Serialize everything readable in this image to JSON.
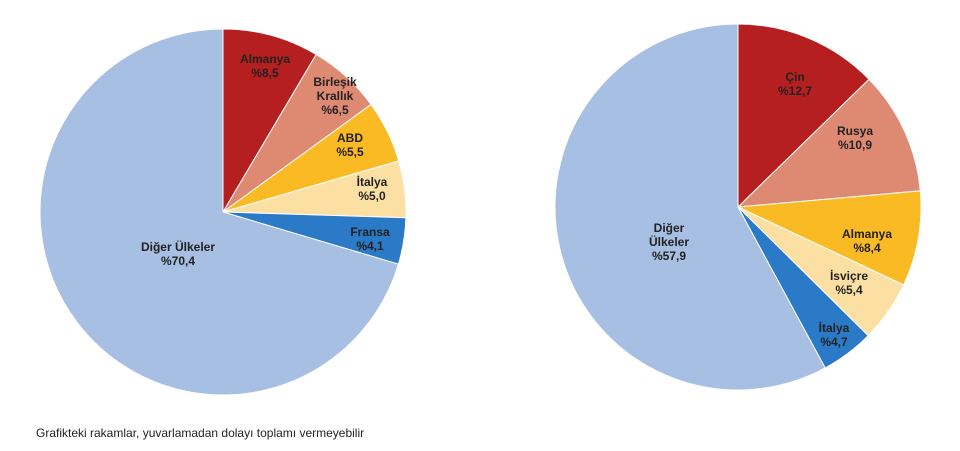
{
  "chart_data": [
    {
      "type": "pie",
      "title": "",
      "slices": [
        {
          "label": [
            "Almanya",
            "%8,5"
          ],
          "value": 8.5,
          "color": "#B51F1F"
        },
        {
          "label": [
            "Birleşik",
            "Krallık",
            "%6,5"
          ],
          "value": 6.5,
          "color": "#DE8A73"
        },
        {
          "label": [
            "ABD",
            "%5,5"
          ],
          "value": 5.5,
          "color": "#F9BA24"
        },
        {
          "label": [
            "İtalya",
            "%5,0"
          ],
          "value": 5.0,
          "color": "#FCE0A3"
        },
        {
          "label": [
            "Fransa",
            "%4,1"
          ],
          "value": 4.1,
          "color": "#2A7AC8"
        },
        {
          "label": [
            "Diğer Ülkeler",
            "%70,4"
          ],
          "value": 70.4,
          "color": "#A7BFE2"
        }
      ]
    },
    {
      "type": "pie",
      "title": "",
      "slices": [
        {
          "label": [
            "Çin",
            "%12,7"
          ],
          "value": 12.7,
          "color": "#B51F1F"
        },
        {
          "label": [
            "Rusya",
            "%10,9"
          ],
          "value": 10.9,
          "color": "#DE8A73"
        },
        {
          "label": [
            "Almanya",
            "%8,4"
          ],
          "value": 8.4,
          "color": "#F9BA24"
        },
        {
          "label": [
            "İsviçre",
            "%5,4"
          ],
          "value": 5.4,
          "color": "#FCE0A3"
        },
        {
          "label": [
            "İtalya",
            "%4,7"
          ],
          "value": 4.7,
          "color": "#2A7AC8"
        },
        {
          "label": [
            "Diğer",
            "Ülkeler",
            "%57,9"
          ],
          "value": 57.9,
          "color": "#A7BFE2"
        }
      ]
    }
  ],
  "footnote": "Grafikteki rakamlar, yuvarlamadan dolayı toplamı vermeyebilir"
}
